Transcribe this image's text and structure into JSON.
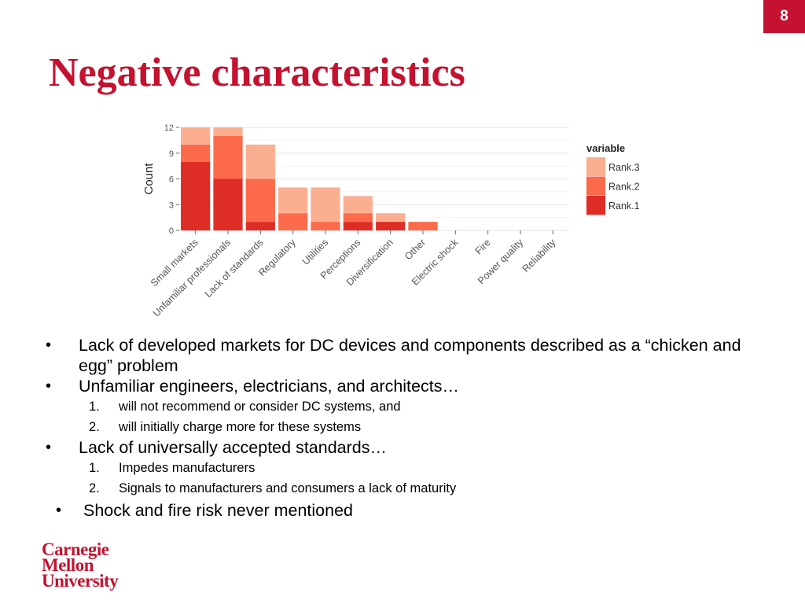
{
  "page_number": "8",
  "title": "Negative characteristics",
  "bullets": [
    {
      "text": "Lack of developed markets for DC devices and components described as a “chicken and egg” problem",
      "sub": []
    },
    {
      "text": "Unfamiliar engineers, electricians, and architects…",
      "sub": [
        "will not recommend or consider DC systems, and",
        "will initially charge more for these systems"
      ]
    },
    {
      "text": "Lack of universally accepted standards…",
      "sub": [
        "Impedes manufacturers",
        "Signals to manufacturers and consumers a lack of maturity"
      ]
    },
    {
      "text": "Shock and fire risk never mentioned",
      "sub": []
    }
  ],
  "logo": {
    "line1": "Carnegie",
    "line2": "Mellon",
    "line3": "University"
  },
  "colors": {
    "accent": "#c41230",
    "rank1": "#de2d26",
    "rank2": "#fb6a4a",
    "rank3": "#fcae91"
  },
  "chart_data": {
    "type": "bar",
    "stacked": true,
    "categories": [
      "Small markets",
      "Unfamiliar professionals",
      "Lack of standards",
      "Regulatory",
      "Utilities",
      "Perceptions",
      "Diversification",
      "Other",
      "Electric shock",
      "Fire",
      "Power quality",
      "Reliability"
    ],
    "series": [
      {
        "name": "Rank.1",
        "values": [
          8,
          6,
          1,
          0,
          0,
          1,
          1,
          0,
          0,
          0,
          0,
          0
        ]
      },
      {
        "name": "Rank.2",
        "values": [
          2,
          5,
          5,
          2,
          1,
          1,
          0,
          1,
          0,
          0,
          0,
          0
        ]
      },
      {
        "name": "Rank.3",
        "values": [
          2,
          1,
          4,
          3,
          4,
          2,
          1,
          0,
          0,
          0,
          0,
          0
        ]
      }
    ],
    "ylabel": "Count",
    "xlabel": "",
    "ylim": [
      0,
      12
    ],
    "yticks": [
      0,
      3,
      6,
      9,
      12
    ],
    "legend_title": "variable",
    "legend_position": "right",
    "grid": true
  }
}
